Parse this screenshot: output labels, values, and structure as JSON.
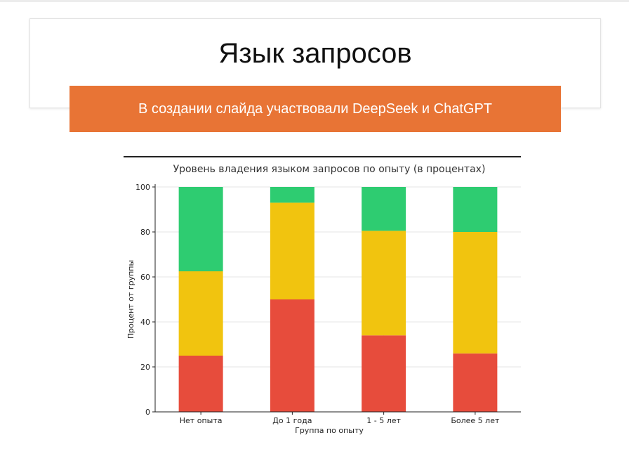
{
  "slide": {
    "title": "Язык запросов",
    "banner": "В создании слайда участвовали DeepSeek и ChatGPT",
    "accent_color": "#e87435"
  },
  "chart_data": {
    "type": "bar",
    "stacked": true,
    "title": "Уровень владения языком запросов по опыту (в процентах)",
    "xlabel": "Группа по опыту",
    "ylabel": "Процент от группы",
    "ylim": [
      0,
      100
    ],
    "yticks": [
      0,
      20,
      40,
      60,
      80,
      100
    ],
    "grid": true,
    "categories": [
      "Нет опыта",
      "До 1 года",
      "1 - 5 лет",
      "Более 5 лет"
    ],
    "series": [
      {
        "color": "#e74c3c",
        "values": [
          25,
          50,
          34,
          26
        ]
      },
      {
        "color": "#f1c40f",
        "values": [
          37.5,
          43,
          46.5,
          54
        ]
      },
      {
        "color": "#2ecc71",
        "values": [
          37.5,
          7,
          19.5,
          20
        ]
      }
    ]
  }
}
